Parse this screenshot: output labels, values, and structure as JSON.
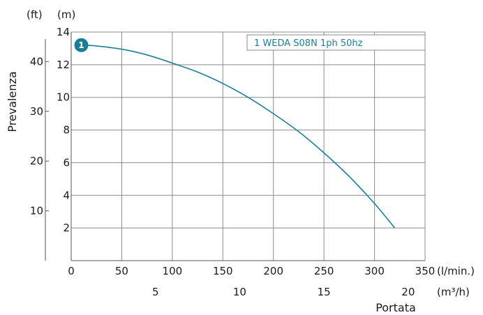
{
  "chart_data": {
    "type": "line",
    "xlabel": "Portata",
    "ylabel": "Prevalenza",
    "units": {
      "y_primary": "(m)",
      "y_secondary": "(ft)",
      "x_primary": "(l/min.)",
      "x_secondary": "(m³/h)"
    },
    "x_ticks": [
      0,
      50,
      100,
      150,
      200,
      250,
      300,
      350
    ],
    "x_secondary_ticks": [
      5,
      10,
      15,
      20
    ],
    "y_ticks": [
      2,
      4,
      6,
      8,
      10,
      12,
      14
    ],
    "y_secondary_ticks": [
      10,
      20,
      30,
      40
    ],
    "xlim": [
      0,
      350
    ],
    "ylim": [
      0,
      14
    ],
    "grid": true,
    "legend": "1 WEDA S08N 1ph 50hz",
    "series": [
      {
        "name": "1 WEDA S08N 1ph 50hz",
        "badge": "1",
        "color": "#1a7f96",
        "x": [
          10,
          25,
          50,
          75,
          100,
          125,
          150,
          175,
          200,
          225,
          250,
          275,
          300,
          320
        ],
        "y": [
          13.2,
          13.15,
          12.95,
          12.6,
          12.1,
          11.55,
          10.85,
          10.0,
          9.0,
          7.9,
          6.6,
          5.15,
          3.5,
          2.0
        ]
      }
    ]
  }
}
